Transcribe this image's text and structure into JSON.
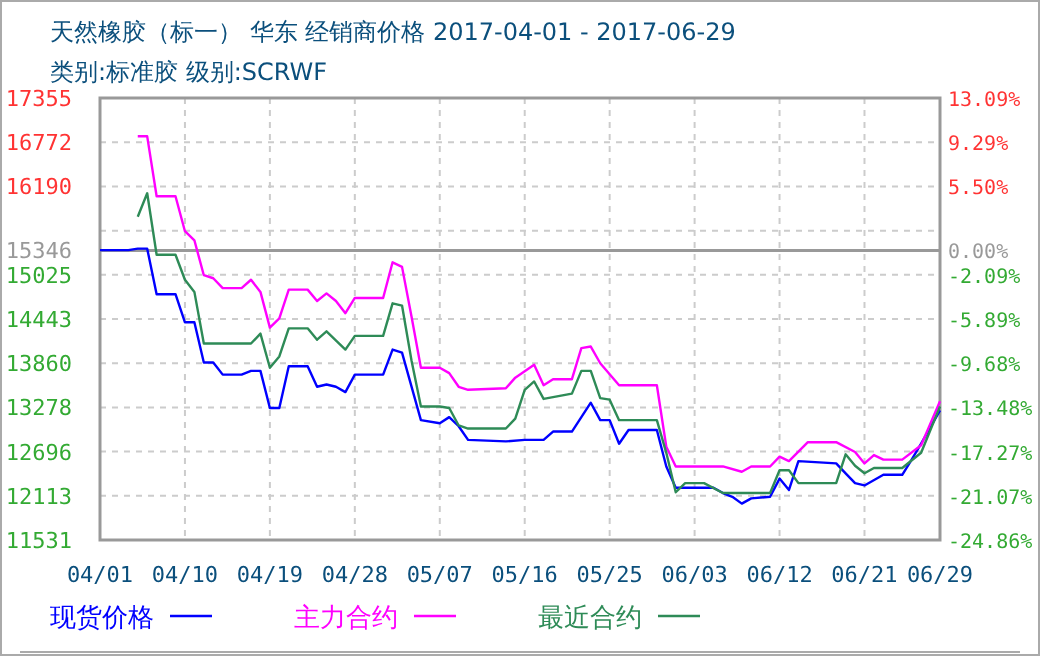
{
  "chart_data": {
    "type": "line",
    "title": "天然橡胶（标一） 华东 经销商价格 2017-04-01 - 2017-06-29",
    "subtitle": "类别:标准胶 级别:SCRWF",
    "xlim": [
      "2017-04-01",
      "2017-06-29"
    ],
    "xticks": [
      {
        "value": "2017-04-01",
        "label": "04/01"
      },
      {
        "value": "2017-04-10",
        "label": "04/10"
      },
      {
        "value": "2017-04-19",
        "label": "04/19"
      },
      {
        "value": "2017-04-28",
        "label": "04/28"
      },
      {
        "value": "2017-05-07",
        "label": "05/07"
      },
      {
        "value": "2017-05-16",
        "label": "05/16"
      },
      {
        "value": "2017-05-25",
        "label": "05/25"
      },
      {
        "value": "2017-06-03",
        "label": "06/03"
      },
      {
        "value": "2017-06-12",
        "label": "06/12"
      },
      {
        "value": "2017-06-21",
        "label": "06/21"
      },
      {
        "value": "2017-06-29",
        "label": "06/29"
      }
    ],
    "ylim": [
      11531,
      17355
    ],
    "yticks": [
      11531,
      12113,
      12696,
      13278,
      13860,
      14443,
      15025,
      15346,
      {
        "value": 15607,
        "label": null
      },
      16190,
      16772,
      17355
    ],
    "y2lim": [
      -24.86,
      13.09
    ],
    "y2ticks": [
      {
        "value": -24.86,
        "label": "-24.86%"
      },
      {
        "value": -21.07,
        "label": "-21.07%"
      },
      {
        "value": -17.27,
        "label": "-17.27%"
      },
      {
        "value": -13.48,
        "label": "-13.48%"
      },
      {
        "value": -9.68,
        "label": "-9.68%"
      },
      {
        "value": -5.89,
        "label": "-5.89%"
      },
      {
        "value": -2.09,
        "label": "-2.09%"
      },
      {
        "value": 0,
        "label": "0.00%"
      },
      {
        "value": 5.5,
        "label": "5.50%"
      },
      {
        "value": 9.29,
        "label": "9.29%"
      },
      {
        "value": 13.09,
        "label": "13.09%"
      }
    ],
    "ref_lines": [
      {
        "axis": "y",
        "value": 15346,
        "color": "#999999"
      }
    ],
    "grid": true,
    "legend": "bottom",
    "line_style": "solid",
    "series": [
      {
        "name": "现货价格",
        "color": "#0000ff",
        "x": [
          "2017-04-01",
          "2017-04-04",
          "2017-04-05",
          "2017-04-06",
          "2017-04-07",
          "2017-04-09",
          "2017-04-10",
          "2017-04-11",
          "2017-04-12",
          "2017-04-13",
          "2017-04-14",
          "2017-04-16",
          "2017-04-17",
          "2017-04-18",
          "2017-04-19",
          "2017-04-20",
          "2017-04-21",
          "2017-04-23",
          "2017-04-24",
          "2017-04-25",
          "2017-04-26",
          "2017-04-27",
          "2017-04-28",
          "2017-05-01",
          "2017-05-02",
          "2017-05-03",
          "2017-05-05",
          "2017-05-07",
          "2017-05-08",
          "2017-05-09",
          "2017-05-10",
          "2017-05-14",
          "2017-05-16",
          "2017-05-18",
          "2017-05-19",
          "2017-05-21",
          "2017-05-23",
          "2017-05-24",
          "2017-05-25",
          "2017-05-26",
          "2017-05-27",
          "2017-05-30",
          "2017-05-31",
          "2017-06-01",
          "2017-06-05",
          "2017-06-06",
          "2017-06-07",
          "2017-06-08",
          "2017-06-09",
          "2017-06-11",
          "2017-06-12",
          "2017-06-13",
          "2017-06-14",
          "2017-06-18",
          "2017-06-19",
          "2017-06-20",
          "2017-06-21",
          "2017-06-23",
          "2017-06-25",
          "2017-06-26",
          "2017-06-27",
          "2017-06-29"
        ],
        "values": [
          15350,
          15350,
          15370,
          15370,
          14770,
          14770,
          14400,
          14400,
          13870,
          13870,
          13710,
          13710,
          13760,
          13760,
          13270,
          13270,
          13820,
          13820,
          13550,
          13580,
          13550,
          13480,
          13710,
          13710,
          14040,
          14000,
          13110,
          13070,
          13150,
          13030,
          12850,
          12830,
          12850,
          12850,
          12960,
          12960,
          13340,
          13110,
          13110,
          12800,
          12980,
          12980,
          12500,
          12220,
          12220,
          12150,
          12100,
          12010,
          12080,
          12100,
          12340,
          12190,
          12570,
          12540,
          12410,
          12280,
          12250,
          12390,
          12390,
          12590,
          12800,
          13240
        ]
      },
      {
        "name": "主力合约",
        "color": "#ff00ff",
        "x": [
          "2017-04-05",
          "2017-04-06",
          "2017-04-07",
          "2017-04-09",
          "2017-04-10",
          "2017-04-11",
          "2017-04-12",
          "2017-04-13",
          "2017-04-14",
          "2017-04-16",
          "2017-04-17",
          "2017-04-18",
          "2017-04-19",
          "2017-04-20",
          "2017-04-21",
          "2017-04-23",
          "2017-04-24",
          "2017-04-25",
          "2017-04-26",
          "2017-04-27",
          "2017-04-28",
          "2017-05-01",
          "2017-05-02",
          "2017-05-03",
          "2017-05-04",
          "2017-05-05",
          "2017-05-07",
          "2017-05-08",
          "2017-05-09",
          "2017-05-10",
          "2017-05-14",
          "2017-05-15",
          "2017-05-17",
          "2017-05-18",
          "2017-05-19",
          "2017-05-21",
          "2017-05-22",
          "2017-05-23",
          "2017-05-24",
          "2017-05-26",
          "2017-05-30",
          "2017-05-31",
          "2017-06-01",
          "2017-06-06",
          "2017-06-08",
          "2017-06-09",
          "2017-06-11",
          "2017-06-12",
          "2017-06-13",
          "2017-06-15",
          "2017-06-18",
          "2017-06-20",
          "2017-06-21",
          "2017-06-22",
          "2017-06-23",
          "2017-06-25",
          "2017-06-27",
          "2017-06-29"
        ],
        "values": [
          16850,
          16850,
          16060,
          16060,
          15600,
          15480,
          15020,
          14980,
          14850,
          14850,
          14960,
          14800,
          14330,
          14450,
          14830,
          14830,
          14680,
          14780,
          14680,
          14520,
          14720,
          14720,
          15190,
          15130,
          14480,
          13800,
          13800,
          13730,
          13550,
          13510,
          13530,
          13670,
          13840,
          13570,
          13650,
          13650,
          14060,
          14080,
          13860,
          13570,
          13570,
          12760,
          12500,
          12500,
          12430,
          12500,
          12500,
          12630,
          12570,
          12820,
          12820,
          12690,
          12540,
          12650,
          12590,
          12590,
          12780,
          13360
        ]
      },
      {
        "name": "最近合约",
        "color": "#2e8b57",
        "x": [
          "2017-04-05",
          "2017-04-06",
          "2017-04-07",
          "2017-04-09",
          "2017-04-10",
          "2017-04-11",
          "2017-04-12",
          "2017-04-17",
          "2017-04-18",
          "2017-04-19",
          "2017-04-20",
          "2017-04-21",
          "2017-04-23",
          "2017-04-24",
          "2017-04-25",
          "2017-04-27",
          "2017-04-28",
          "2017-05-01",
          "2017-05-02",
          "2017-05-03",
          "2017-05-04",
          "2017-05-05",
          "2017-05-07",
          "2017-05-08",
          "2017-05-09",
          "2017-05-10",
          "2017-05-14",
          "2017-05-15",
          "2017-05-16",
          "2017-05-17",
          "2017-05-18",
          "2017-05-21",
          "2017-05-22",
          "2017-05-23",
          "2017-05-24",
          "2017-05-25",
          "2017-05-26",
          "2017-05-30",
          "2017-05-31",
          "2017-06-01",
          "2017-06-02",
          "2017-06-04",
          "2017-06-06",
          "2017-06-11",
          "2017-06-12",
          "2017-06-13",
          "2017-06-14",
          "2017-06-18",
          "2017-06-19",
          "2017-06-20",
          "2017-06-21",
          "2017-06-22",
          "2017-06-25",
          "2017-06-27",
          "2017-06-29"
        ],
        "values": [
          15790,
          16100,
          15290,
          15290,
          14960,
          14800,
          14120,
          14120,
          14250,
          13800,
          13950,
          14320,
          14320,
          14170,
          14280,
          14040,
          14220,
          14220,
          14650,
          14620,
          13900,
          13290,
          13290,
          13270,
          13040,
          13000,
          13000,
          13130,
          13510,
          13620,
          13390,
          13460,
          13760,
          13760,
          13400,
          13380,
          13110,
          13110,
          12680,
          12160,
          12280,
          12280,
          12150,
          12150,
          12450,
          12450,
          12280,
          12280,
          12660,
          12510,
          12410,
          12480,
          12480,
          12680,
          13290
        ]
      }
    ]
  }
}
